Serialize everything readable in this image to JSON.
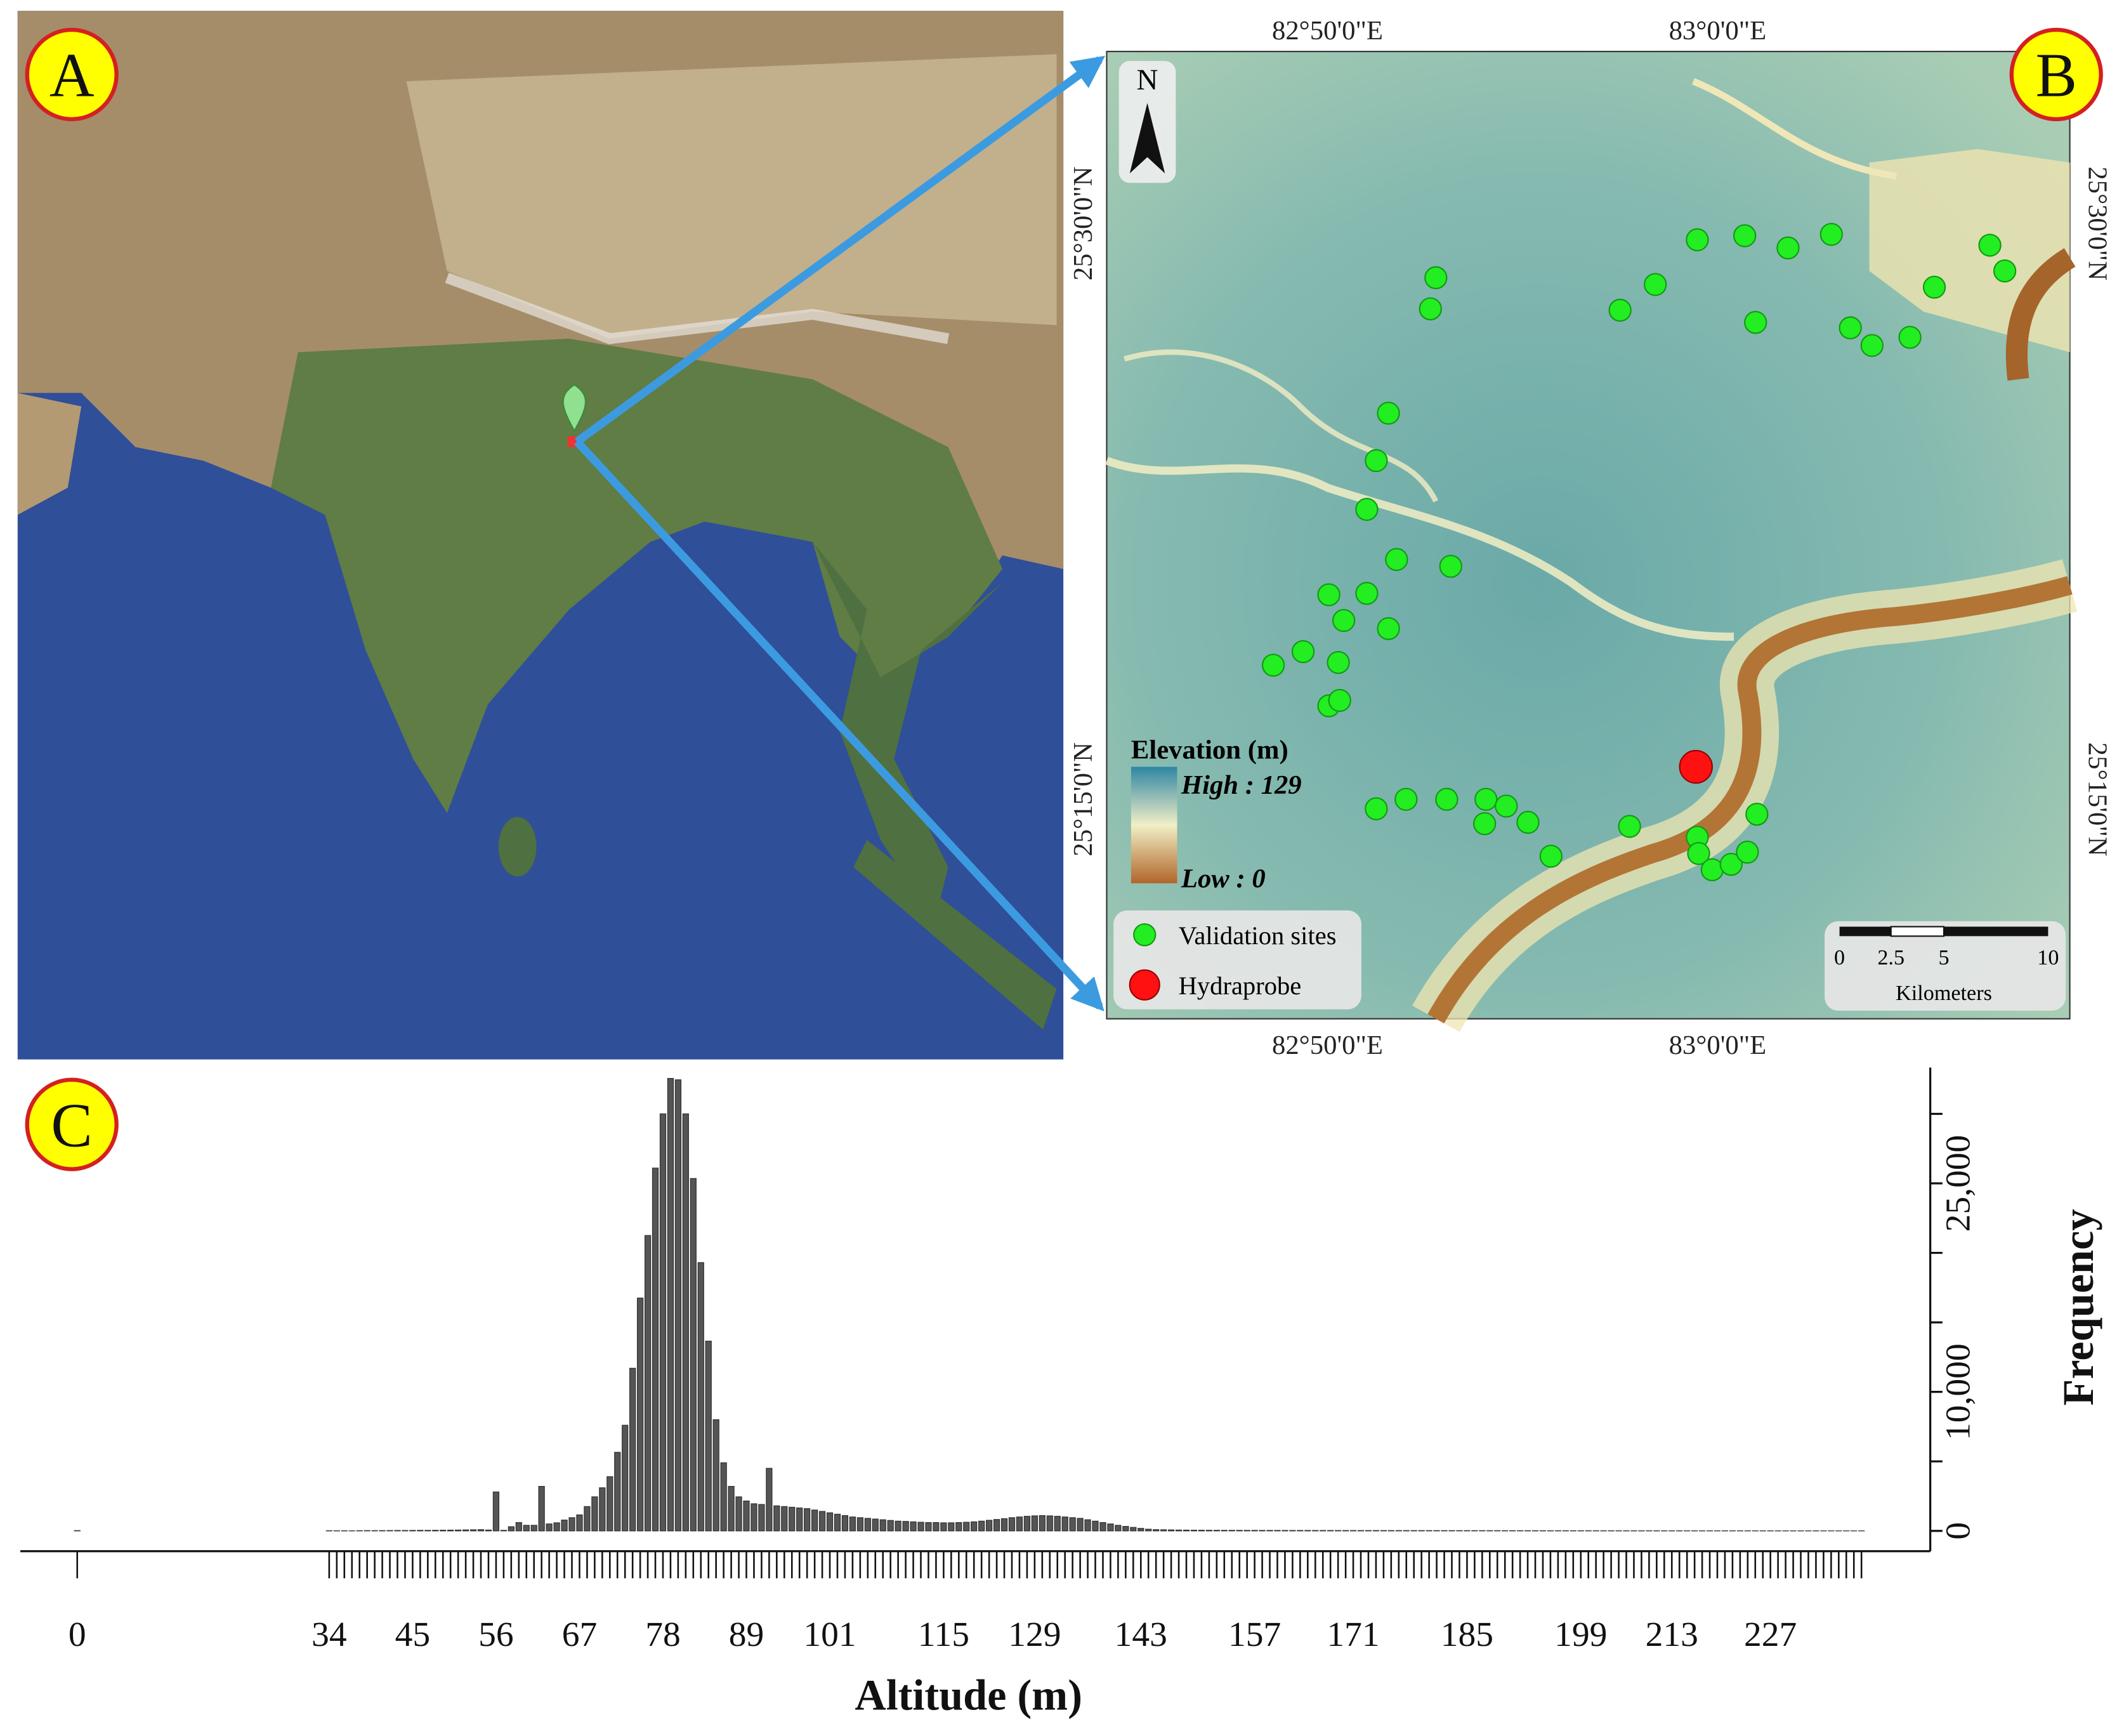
{
  "map_a": {
    "label": "A"
  },
  "map_b": {
    "label": "B",
    "north": "N",
    "lon_labels_top": [
      "82°50'0\"E",
      "83°0'0\"E"
    ],
    "lon_labels_bottom": [
      "82°50'0\"E",
      "83°0'0\"E"
    ],
    "lat_labels_left": [
      "25°30'0\"N",
      "25°15'0\"N"
    ],
    "lat_labels_right": [
      "25°30'0\"N",
      "25°15'0\"N"
    ],
    "legend": {
      "title": "Elevation (m)",
      "high": "High : 129",
      "low": "Low : 0"
    },
    "points_legend": [
      "Validation sites",
      "Hydraprobe"
    ],
    "scale_bar": {
      "labels": [
        "0",
        "2.5",
        "5",
        "10"
      ],
      "unit": "Kilometers"
    }
  },
  "chart_data": {
    "type": "bar",
    "panel_label": "C",
    "xlabel": "Altitude (m)",
    "ylabel": "Frequency",
    "color": "#555555",
    "categories": [
      "0",
      "34",
      null,
      null,
      null,
      null,
      null,
      null,
      null,
      null,
      null,
      null,
      "45",
      null,
      null,
      null,
      null,
      null,
      null,
      null,
      null,
      null,
      null,
      "56",
      null,
      null,
      null,
      null,
      null,
      null,
      null,
      null,
      null,
      null,
      "67",
      null,
      null,
      null,
      null,
      null,
      null,
      null,
      null,
      null,
      null,
      "78",
      null,
      null,
      null,
      null,
      null,
      null,
      null,
      null,
      null,
      null,
      "89",
      null,
      null,
      null,
      null,
      null,
      null,
      null,
      null,
      null,
      null,
      "101",
      null,
      null,
      null,
      null,
      null,
      null,
      null,
      null,
      null,
      null,
      null,
      null,
      null,
      null,
      "115",
      null,
      null,
      null,
      null,
      null,
      null,
      null,
      null,
      null,
      null,
      null,
      "129",
      null,
      null,
      null,
      null,
      null,
      null,
      null,
      null,
      null,
      null,
      null,
      null,
      null,
      "143",
      null,
      null,
      null,
      null,
      null,
      null,
      null,
      null,
      null,
      null,
      null,
      null,
      null,
      null,
      "157",
      null,
      null,
      null,
      null,
      null,
      null,
      null,
      null,
      null,
      null,
      null,
      null,
      "171",
      null,
      null,
      null,
      null,
      null,
      null,
      null,
      null,
      null,
      null,
      null,
      null,
      null,
      null,
      "185",
      null,
      null,
      null,
      null,
      null,
      null,
      null,
      null,
      null,
      null,
      null,
      null,
      null,
      null,
      "199",
      null,
      null,
      null,
      null,
      null,
      null,
      null,
      null,
      null,
      null,
      null,
      "213",
      null,
      null,
      null,
      null,
      null,
      null,
      null,
      null,
      null,
      null,
      null,
      null,
      "227",
      null,
      null,
      null,
      null,
      null,
      null,
      null,
      null,
      null,
      null,
      null,
      null
    ],
    "values": [
      20,
      12,
      8,
      10,
      5,
      15,
      20,
      18,
      22,
      25,
      30,
      28,
      35,
      40,
      38,
      45,
      50,
      55,
      60,
      70,
      80,
      90,
      60,
      2800,
      40,
      300,
      600,
      400,
      400,
      3200,
      500,
      580,
      780,
      950,
      1150,
      1750,
      2450,
      3100,
      3900,
      5650,
      7600,
      11700,
      16750,
      21250,
      26100,
      30000,
      32550,
      32450,
      30000,
      25350,
      19300,
      13650,
      8000,
      4900,
      3200,
      2450,
      2150,
      1950,
      1900,
      4500,
      1800,
      1750,
      1700,
      1650,
      1600,
      1500,
      1400,
      1300,
      1200,
      1100,
      1000,
      950,
      900,
      850,
      800,
      750,
      700,
      680,
      650,
      620,
      600,
      600,
      580,
      580,
      600,
      620,
      650,
      700,
      760,
      820,
      880,
      950,
      1000,
      1050,
      1080,
      1100,
      1080,
      1050,
      1000,
      950,
      900,
      800,
      700,
      600,
      500,
      400,
      320,
      250,
      180,
      120,
      90,
      80,
      70,
      60,
      55,
      50,
      48,
      45,
      42,
      40,
      40,
      38,
      36,
      35,
      34,
      33,
      32,
      31,
      30,
      30,
      29,
      28,
      28,
      27,
      26,
      26,
      25,
      25,
      24,
      24,
      23,
      23,
      22,
      22,
      21,
      21,
      20,
      20,
      19,
      19,
      18,
      18,
      17,
      17,
      16,
      16,
      15,
      15,
      14,
      14,
      13,
      13,
      12,
      12,
      12,
      11,
      11,
      11,
      10,
      10,
      10,
      9,
      9,
      9,
      8,
      8,
      8,
      7,
      7,
      7,
      6,
      6,
      6,
      6,
      5,
      5,
      5,
      5,
      4,
      4,
      4,
      4,
      4,
      3,
      3,
      3,
      3,
      3,
      2,
      2,
      2,
      2,
      2,
      2
    ],
    "ylim": [
      0,
      33000
    ],
    "yticks": [
      0,
      {
        "value": 5000,
        "label": null
      },
      {
        "value": 10000,
        "label": "10,000"
      },
      {
        "value": 15000,
        "label": null
      },
      {
        "value": 20000,
        "label": null
      },
      {
        "value": 25000,
        "label": "25,000"
      },
      {
        "value": 30000,
        "label": null
      }
    ]
  }
}
